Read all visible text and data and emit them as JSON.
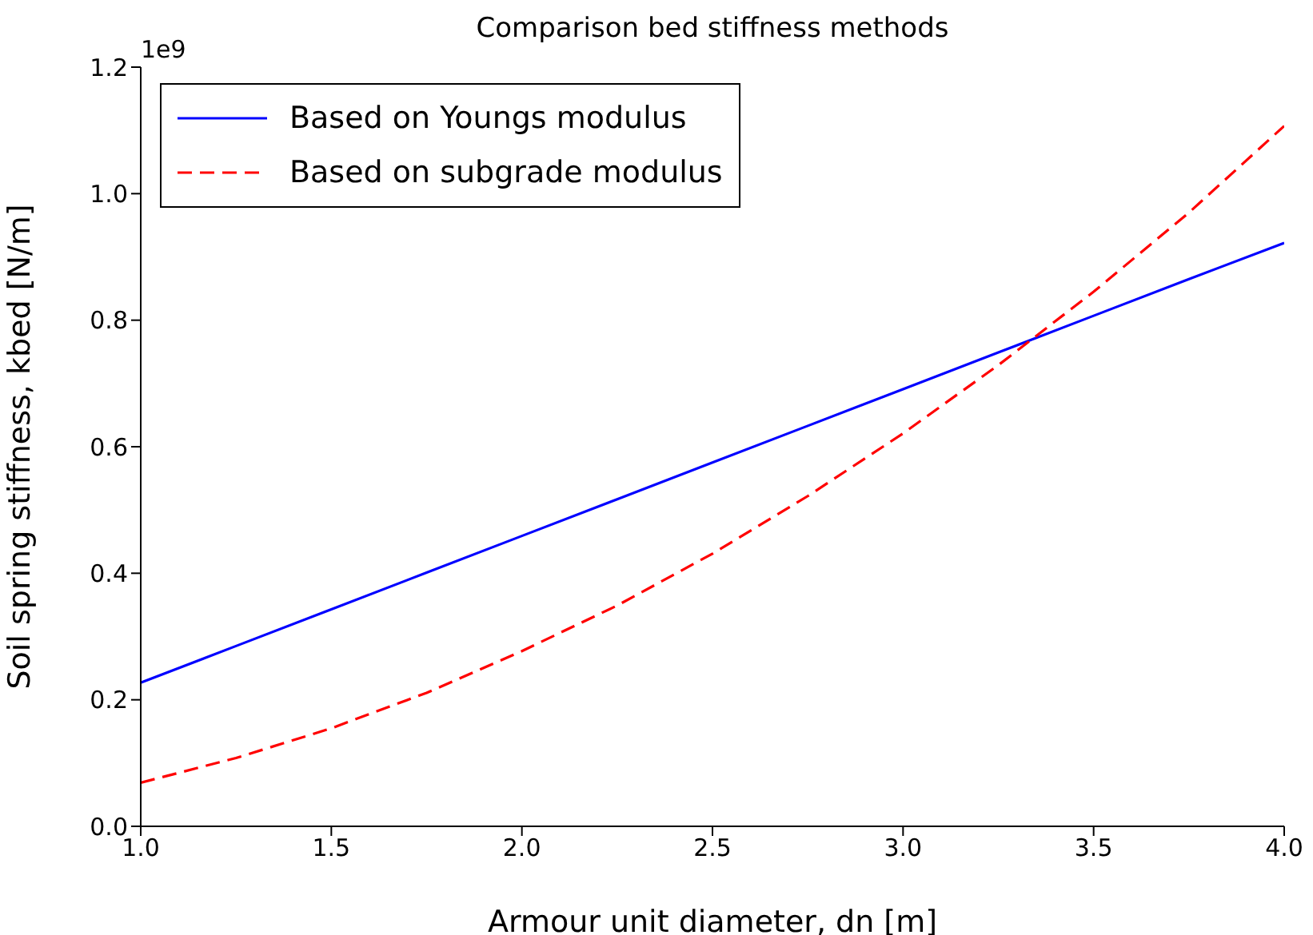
{
  "chart_data": {
    "type": "line",
    "title": "Comparison bed stiffness methods",
    "xlabel": "Armour unit diameter, dn [m]",
    "ylabel": "Soil spring stiffness, kbed [N/m]",
    "annotations": [
      "1e9"
    ],
    "x": [
      1.0,
      1.25,
      1.5,
      1.75,
      2.0,
      2.25,
      2.5,
      2.75,
      3.0,
      3.25,
      3.5,
      3.75,
      4.0
    ],
    "series": [
      {
        "name": "Based on Youngs modulus",
        "color": "#0000ff",
        "line_style": "solid",
        "values": [
          0.227,
          0.285,
          0.343,
          0.401,
          0.459,
          0.517,
          0.575,
          0.633,
          0.691,
          0.749,
          0.807,
          0.865,
          0.922
        ]
      },
      {
        "name": "Based on subgrade modulus",
        "color": "#ff0000",
        "line_style": "dashed",
        "values": [
          0.069,
          0.108,
          0.155,
          0.211,
          0.277,
          0.349,
          0.431,
          0.522,
          0.621,
          0.729,
          0.845,
          0.97,
          1.107
        ]
      }
    ],
    "xlim": [
      1.0,
      4.0
    ],
    "xticks": [
      {
        "value": 1,
        "label": "1.0"
      },
      1.5,
      {
        "value": 2,
        "label": "2.0"
      },
      2.5,
      {
        "value": 3,
        "label": "3.0"
      },
      3.5,
      {
        "value": 4,
        "label": "4.0"
      }
    ],
    "ylim": [
      0,
      1.2
    ],
    "yticks": [
      {
        "value": 0,
        "label": "0.0"
      },
      0.2,
      0.4,
      0.6,
      0.8,
      {
        "value": 1,
        "label": "1.0"
      },
      1.2
    ],
    "grid": false,
    "legend": "top left",
    "marker": "none"
  }
}
